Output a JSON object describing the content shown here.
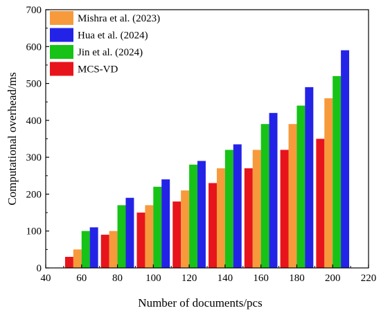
{
  "chart_data": {
    "type": "bar",
    "xlabel": "Number of documents/pcs",
    "ylabel": "Computational overhead/ms",
    "xlim": [
      40,
      220
    ],
    "ylim": [
      0,
      700
    ],
    "x_ticks": [
      40,
      60,
      80,
      100,
      120,
      140,
      160,
      180,
      200,
      220
    ],
    "y_ticks": [
      0,
      100,
      200,
      300,
      400,
      500,
      600,
      700
    ],
    "categories": [
      60,
      80,
      100,
      120,
      140,
      160,
      180,
      200
    ],
    "grid": false,
    "legend_position": "top-left",
    "series": [
      {
        "name": "MCS-VD",
        "color": "#e8141b",
        "values": [
          30,
          90,
          150,
          180,
          230,
          270,
          320,
          350
        ]
      },
      {
        "name": "Mishra et al. (2023)",
        "color": "#f79a3c",
        "values": [
          50,
          100,
          170,
          210,
          270,
          320,
          390,
          460
        ]
      },
      {
        "name": "Jin et al. (2024)",
        "color": "#17c317",
        "values": [
          100,
          170,
          220,
          280,
          320,
          390,
          440,
          520
        ]
      },
      {
        "name": "Hua et al. (2024)",
        "color": "#2323e8",
        "values": [
          110,
          190,
          240,
          290,
          335,
          420,
          490,
          590
        ]
      }
    ],
    "legend_order": [
      "Mishra et al. (2023)",
      "Hua et al. (2024)",
      "Jin et al. (2024)",
      "MCS-VD"
    ]
  }
}
